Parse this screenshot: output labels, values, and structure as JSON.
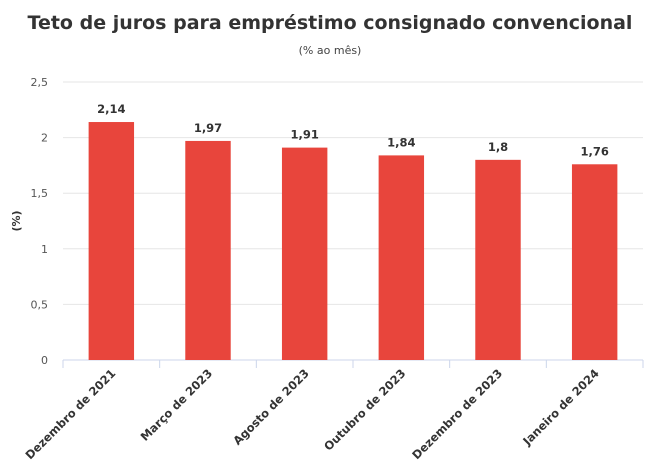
{
  "chart_data": {
    "type": "bar",
    "title": "Teto de juros para empréstimo consignado convencional",
    "subtitle": "(% ao mês)",
    "ylabel": "(%)",
    "xlabel": "",
    "categories": [
      "Dezembro de 2021",
      "Março de 2023",
      "Agosto de 2023",
      "Outubro de 2023",
      "Dezembro de 2023",
      "Janeiro de 2024"
    ],
    "values": [
      2.14,
      1.97,
      1.91,
      1.84,
      1.8,
      1.76
    ],
    "data_labels": [
      "2,14",
      "1,97",
      "1,91",
      "1,84",
      "1,8",
      "1,76"
    ],
    "ylim": [
      0,
      2.5
    ],
    "yticks": [
      "0",
      "0,5",
      "1",
      "1,5",
      "2",
      "2,5"
    ],
    "grid": true,
    "legend": "none",
    "bar_color": "#e8453c"
  }
}
